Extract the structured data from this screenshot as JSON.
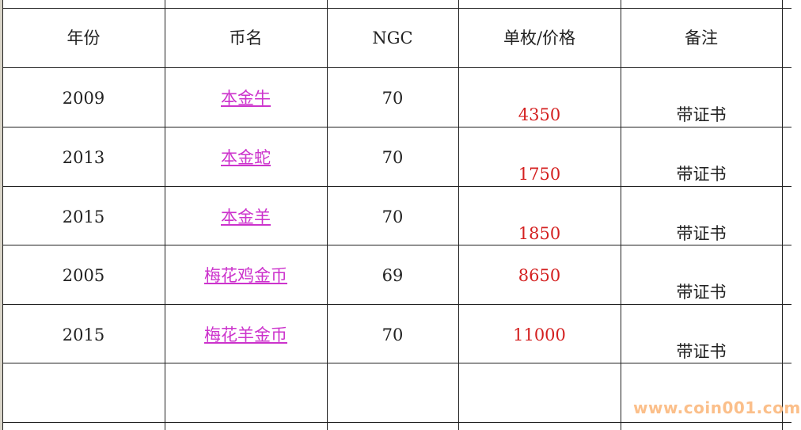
{
  "headers": [
    "年份",
    "币名",
    "NGC",
    "单枚/价格",
    "备注"
  ],
  "rows": [
    {
      "year": "2009",
      "name": "本金牛",
      "ngc": "70",
      "price": "4350",
      "note": "带证书"
    },
    {
      "year": "2013",
      "name": "本金蛇",
      "ngc": "70",
      "price": "1750",
      "note": "带证书"
    },
    {
      "year": "2015",
      "name": "本金羊",
      "ngc": "70",
      "price": "1850",
      "note": "带证书"
    },
    {
      "year": "2005",
      "name": "梅花鸡金币",
      "ngc": "69",
      "price": "8650",
      "note": "带证书"
    },
    {
      "year": "2015",
      "name": "梅花羊金币",
      "ngc": "70",
      "price": "11000",
      "note": "带证书"
    }
  ],
  "watermark": "www.coin001.com",
  "colors": {
    "link": "#cc33cc",
    "price": "#d42020",
    "watermark": "#fbbf8a"
  }
}
